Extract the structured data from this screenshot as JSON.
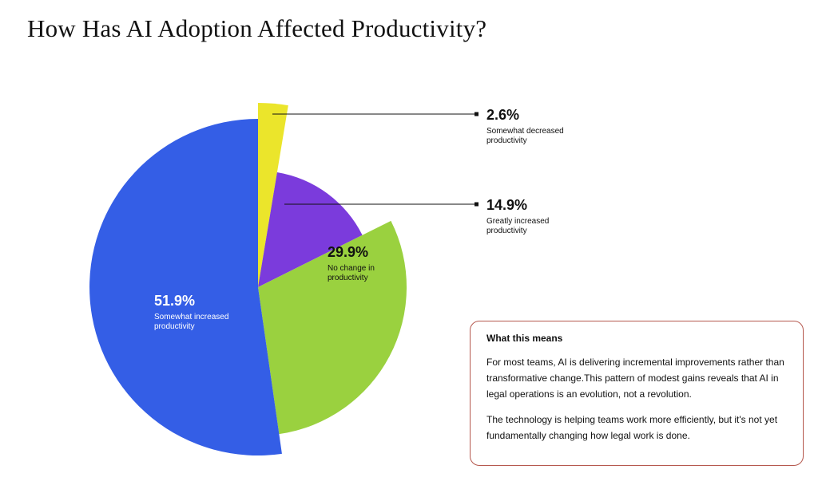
{
  "page": {
    "title": "How Has AI Adoption Affected Productivity?"
  },
  "chart_data": {
    "type": "pie",
    "title": "How Has AI Adoption Affected Productivity?",
    "slices": [
      {
        "label": "Somewhat decreased productivity",
        "value": 2.6,
        "display": "2.6%",
        "caption_lines": [
          "Somewhat decreased",
          "productivity"
        ],
        "color": "#ebe52b",
        "label_placement": "outside-callout"
      },
      {
        "label": "Greatly increased productivity",
        "value": 14.9,
        "display": "14.9%",
        "caption_lines": [
          "Greatly increased",
          "productivity"
        ],
        "color": "#7b3bdc",
        "label_placement": "outside-callout"
      },
      {
        "label": "No change in productivity",
        "value": 29.9,
        "display": "29.9%",
        "caption_lines": [
          "No change in",
          "productivity"
        ],
        "color": "#9ad13f",
        "label_placement": "inside"
      },
      {
        "label": "Somewhat increased productivity",
        "value": 51.9,
        "display": "51.9%",
        "caption_lines": [
          "Somewhat increased",
          "productivity"
        ],
        "color": "#345ee6",
        "label_placement": "inside"
      }
    ]
  },
  "info_box": {
    "heading": "What this means",
    "paragraph1": "For most teams, AI is delivering incremental improvements rather than transformative change.This pattern of modest gains reveals that AI in legal operations is an evolution, not a revolution.",
    "paragraph2": "The technology is helping teams work more efficiently, but it's not yet fundamentally changing how legal work is done."
  }
}
